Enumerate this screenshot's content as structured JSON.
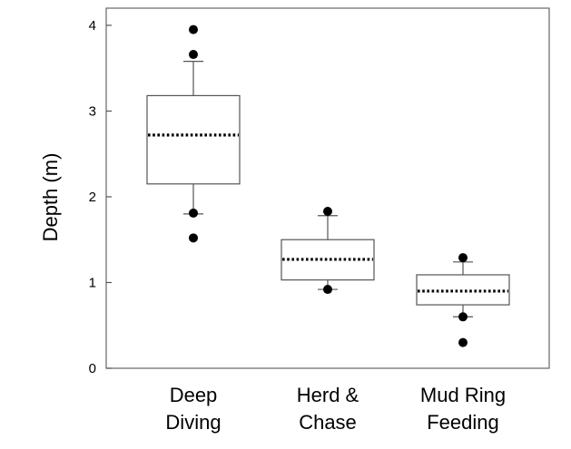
{
  "chart_data": {
    "type": "box",
    "ylabel": "Depth (m)",
    "ylim": [
      0,
      4.2
    ],
    "yticks": [
      "0",
      "1",
      "2",
      "3",
      "4"
    ],
    "grid": false,
    "categories": [
      {
        "label_lines": [
          "Deep",
          "Diving"
        ]
      },
      {
        "label_lines": [
          "Herd &",
          "Chase"
        ]
      },
      {
        "label_lines": [
          "Mud Ring",
          "Feeding"
        ]
      }
    ],
    "boxes": [
      {
        "whisker_low": 1.8,
        "q1": 2.15,
        "mean": 2.72,
        "q3": 3.18,
        "whisker_high": 3.58,
        "outliers": [
          1.52,
          1.81,
          3.66,
          3.95
        ]
      },
      {
        "whisker_low": 0.92,
        "q1": 1.03,
        "mean": 1.27,
        "q3": 1.5,
        "whisker_high": 1.78,
        "outliers": [
          0.92,
          1.83
        ]
      },
      {
        "whisker_low": 0.6,
        "q1": 0.74,
        "mean": 0.9,
        "q3": 1.09,
        "whisker_high": 1.24,
        "outliers": [
          0.3,
          0.6,
          1.29
        ]
      }
    ],
    "mean_line_style": "dotted"
  }
}
